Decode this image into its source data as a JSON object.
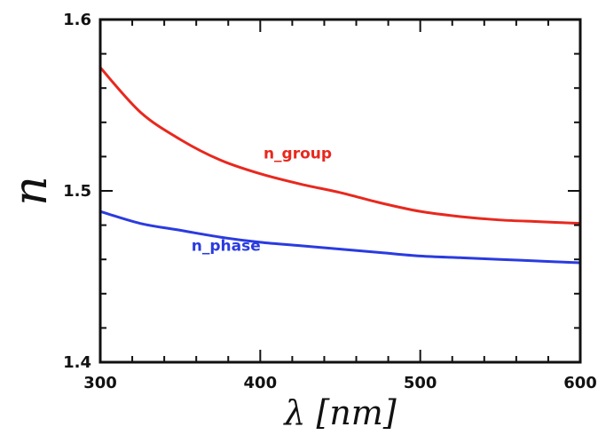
{
  "chart_data": {
    "type": "line",
    "xlabel": "λ [nm]",
    "ylabel": "n",
    "xlim": [
      300,
      600
    ],
    "ylim": [
      1.4,
      1.6
    ],
    "x_ticks": [
      300,
      400,
      500,
      600
    ],
    "x_tick_labels": [
      "300",
      "400",
      "500",
      "600"
    ],
    "y_ticks": [
      1.4,
      1.5,
      1.6
    ],
    "y_tick_labels": [
      "1.4",
      "1.5",
      "1.6"
    ],
    "grid": false,
    "series": [
      {
        "name": "n_group",
        "color": "#e8281e",
        "x": [
          300,
          325,
          350,
          375,
          400,
          425,
          450,
          475,
          500,
          525,
          550,
          575,
          600
        ],
        "y": [
          1.572,
          1.546,
          1.53,
          1.518,
          1.51,
          1.504,
          1.499,
          1.493,
          1.488,
          1.485,
          1.483,
          1.482,
          1.481
        ]
      },
      {
        "name": "n_phase",
        "color": "#2a3be0",
        "x": [
          300,
          325,
          350,
          375,
          400,
          425,
          450,
          475,
          500,
          525,
          550,
          575,
          600
        ],
        "y": [
          1.488,
          1.481,
          1.477,
          1.473,
          1.47,
          1.468,
          1.466,
          1.464,
          1.462,
          1.461,
          1.46,
          1.459,
          1.458
        ]
      }
    ],
    "annotations": [
      {
        "text": "n_group",
        "x": 402,
        "y": 1.519,
        "color": "#e8281e"
      },
      {
        "text": "n_phase",
        "x": 357,
        "y": 1.465,
        "color": "#2a3be0"
      }
    ]
  }
}
